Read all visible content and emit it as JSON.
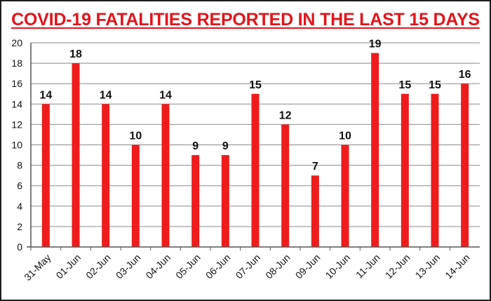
{
  "chart_data": {
    "type": "bar",
    "title": "COVID-19 FATALITIES REPORTED IN THE LAST 15 DAYS",
    "categories": [
      "31-May",
      "01-Jun",
      "02-Jun",
      "03-Jun",
      "04-Jun",
      "05-Jun",
      "06-Jun",
      "07-Jun",
      "08-Jun",
      "09-Jun",
      "10-Jun",
      "11-Jun",
      "12-Jun",
      "13-Jun",
      "14-Jun"
    ],
    "values": [
      14,
      18,
      14,
      10,
      14,
      9,
      9,
      15,
      12,
      7,
      10,
      19,
      15,
      15,
      16
    ],
    "ylim": [
      0,
      20
    ],
    "yticks": [
      "0",
      "2",
      "4",
      "6",
      "8",
      "10",
      "12",
      "14",
      "16",
      "18",
      "20"
    ],
    "grid": true,
    "bar_color": "#ee1c1c",
    "title_color": "#e3141b"
  }
}
